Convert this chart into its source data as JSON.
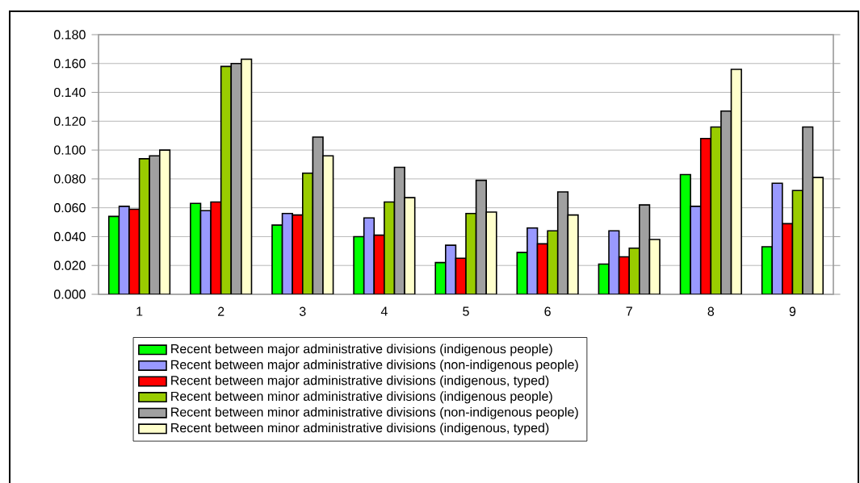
{
  "chart_data": {
    "type": "bar",
    "categories": [
      "1",
      "2",
      "3",
      "4",
      "5",
      "6",
      "7",
      "8",
      "9"
    ],
    "series": [
      {
        "name": "Recent  between major administrative divisions (indigenous people)",
        "color": "#00ff00",
        "values": [
          0.054,
          0.063,
          0.048,
          0.04,
          0.022,
          0.029,
          0.021,
          0.083,
          0.033
        ]
      },
      {
        "name": "Recent  between major administrative divisions (non-indigenous people)",
        "color": "#9999ff",
        "values": [
          0.061,
          0.058,
          0.056,
          0.053,
          0.034,
          0.046,
          0.044,
          0.061,
          0.077
        ]
      },
      {
        "name": "Recent  between major administrative divisions (indigenous, typed)",
        "color": "#ff0000",
        "values": [
          0.059,
          0.064,
          0.055,
          0.041,
          0.025,
          0.035,
          0.026,
          0.108,
          0.049
        ]
      },
      {
        "name": "Recent  between minor administrative divisions (indigenous people)",
        "color": "#99cc00",
        "values": [
          0.094,
          0.158,
          0.084,
          0.064,
          0.056,
          0.044,
          0.032,
          0.116,
          0.072
        ]
      },
      {
        "name": "Recent  between minor administrative divisions (non-indigenous people)",
        "color": "#a0a0a0",
        "values": [
          0.096,
          0.16,
          0.109,
          0.088,
          0.079,
          0.071,
          0.062,
          0.127,
          0.116
        ]
      },
      {
        "name": "Recent  between minor administrative divisions (indigenous, typed)",
        "color": "#ffffcc",
        "values": [
          0.1,
          0.163,
          0.096,
          0.067,
          0.057,
          0.055,
          0.038,
          0.156,
          0.081
        ]
      }
    ],
    "ylim": [
      0,
      0.18
    ],
    "yticks": [
      {
        "value": 0,
        "label": "0.000"
      },
      {
        "value": 0.02,
        "label": "0.020"
      },
      {
        "value": 0.04,
        "label": "0.040"
      },
      {
        "value": 0.06,
        "label": "0.060"
      },
      {
        "value": 0.08,
        "label": "0.080"
      },
      {
        "value": 0.1,
        "label": "0.100"
      },
      {
        "value": 0.12,
        "label": "0.120"
      },
      {
        "value": 0.14,
        "label": "0.140"
      },
      {
        "value": 0.16,
        "label": "0.160"
      },
      {
        "value": 0.18,
        "label": "0.180"
      }
    ],
    "grid": "y",
    "legend": "bottom"
  }
}
